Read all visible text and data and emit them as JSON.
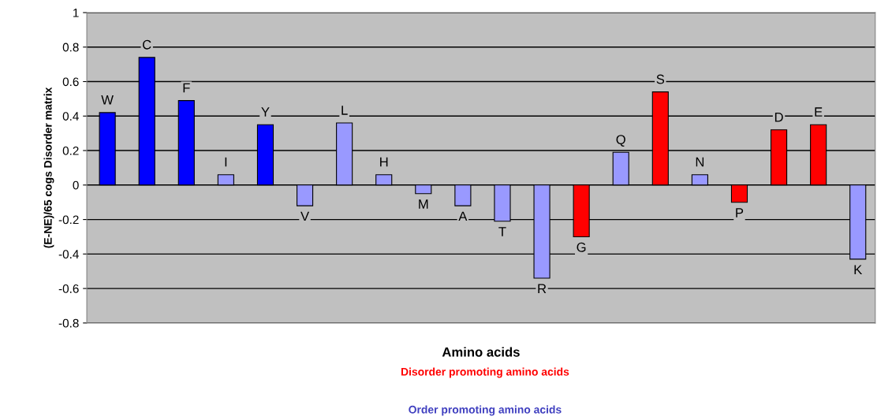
{
  "chart_data": {
    "type": "bar",
    "ylabel": "(E-NE)/65 cogs Disorder matrix",
    "xlabel": "Amino acids",
    "categories": [
      "W",
      "C",
      "F",
      "I",
      "Y",
      "V",
      "L",
      "H",
      "M",
      "A",
      "T",
      "R",
      "G",
      "Q",
      "S",
      "N",
      "P",
      "D",
      "E",
      "K"
    ],
    "values": [
      0.42,
      0.74,
      0.49,
      0.06,
      0.35,
      -0.12,
      0.36,
      0.06,
      -0.05,
      -0.12,
      -0.21,
      -0.54,
      -0.3,
      0.19,
      0.54,
      0.06,
      -0.1,
      0.32,
      0.35,
      -0.43
    ],
    "colors": [
      "#0000ff",
      "#0000ff",
      "#0000ff",
      "#9999ff",
      "#0000ff",
      "#9999ff",
      "#9999ff",
      "#9999ff",
      "#9999ff",
      "#9999ff",
      "#9999ff",
      "#9999ff",
      "#ff0000",
      "#9999ff",
      "#ff0000",
      "#9999ff",
      "#ff0000",
      "#ff0000",
      "#ff0000",
      "#9999ff"
    ],
    "ylim": [
      -0.8,
      1
    ],
    "yticks": [
      -0.8,
      -0.6,
      -0.4,
      -0.2,
      0,
      0.2,
      0.4,
      0.6,
      0.8,
      1
    ],
    "grid": "y",
    "tick_labels": "y",
    "annotations": [
      "Disorder promoting amino acids",
      "Order promoting amino acids"
    ]
  }
}
